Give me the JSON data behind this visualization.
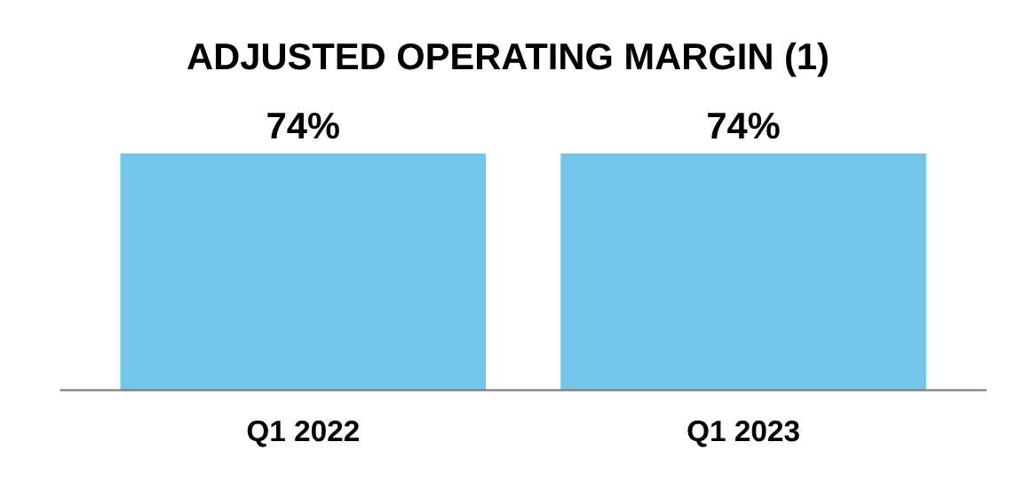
{
  "chart_data": {
    "type": "bar",
    "title": "ADJUSTED OPERATING MARGIN (1)",
    "categories": [
      "Q1 2022",
      "Q1 2023"
    ],
    "values": [
      74,
      74
    ],
    "value_labels": [
      "74%",
      "74%"
    ],
    "color": "#71c5e8",
    "grid": false,
    "legend": false
  }
}
